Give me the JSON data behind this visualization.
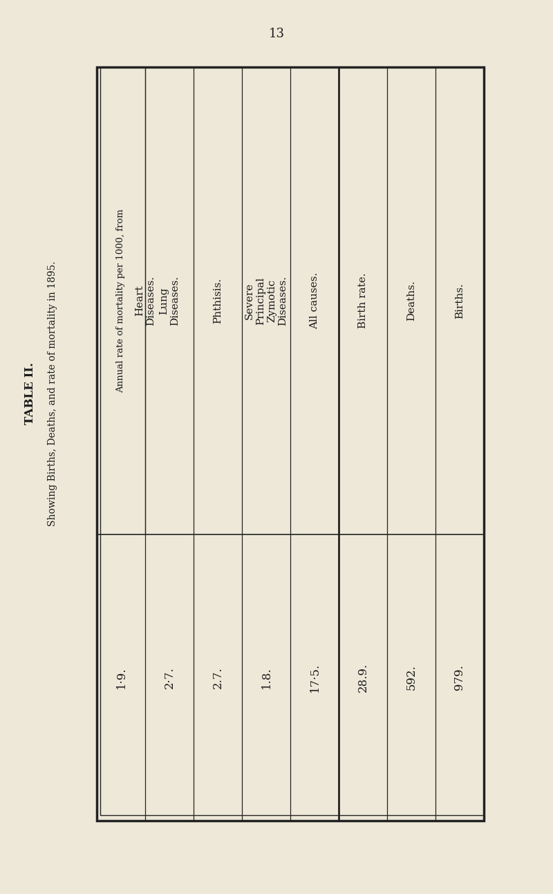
{
  "page_number": "13",
  "table_title": "TABLE II.",
  "subtitle": "Showing Births, Deaths, and rate of mortality in 1895.",
  "group_header": "Annual rate of mortality per 1000, from",
  "background_color": "#ede8d8",
  "border_color": "#222222",
  "text_color": "#1a1a1a",
  "columns": [
    {
      "header": "Heart\nDiseases.",
      "value": "1·9."
    },
    {
      "header": "Lung\nDiseases.",
      "value": "2·7."
    },
    {
      "header": "Phthisis.",
      "value": "2.7."
    },
    {
      "header": "Severe\nPrincipal\nZymotic\nDiseases.",
      "value": "1.8."
    },
    {
      "header": "All causes.",
      "value": "17·5."
    },
    {
      "header": "Birth rate.",
      "value": "28.9."
    },
    {
      "header": "Deaths.",
      "value": "592."
    },
    {
      "header": "Births.",
      "value": "979."
    }
  ],
  "font_size_header": 11,
  "font_size_value": 12,
  "font_size_title": 10,
  "font_size_table_title": 12,
  "font_size_page": 13
}
